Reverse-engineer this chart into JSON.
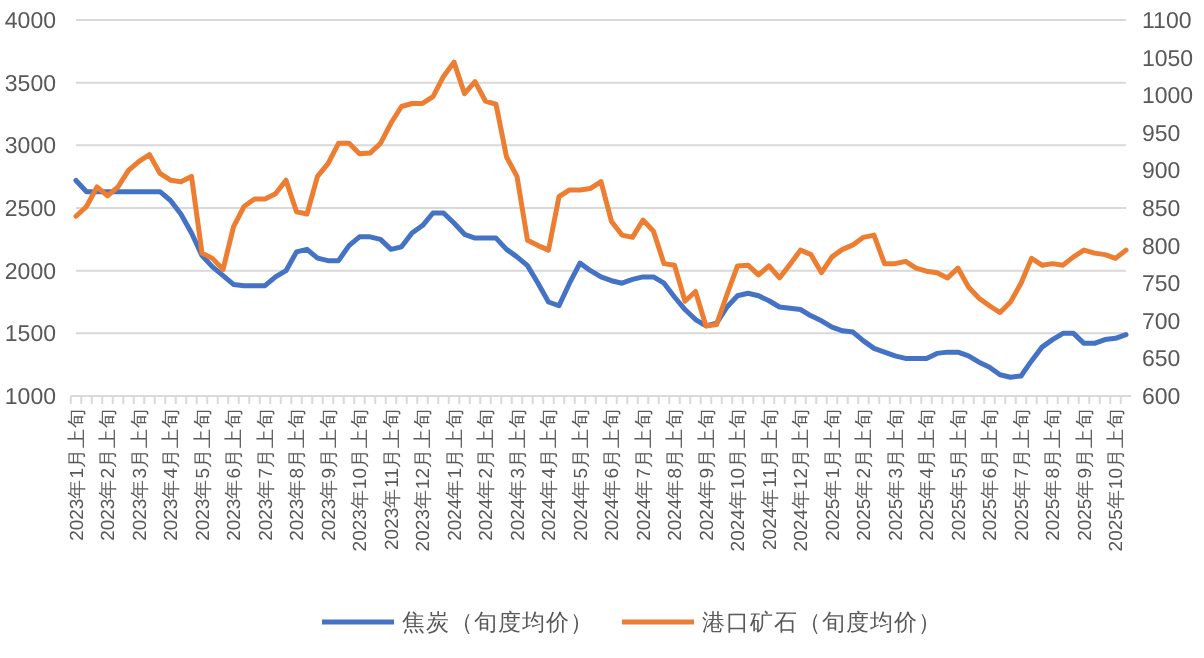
{
  "chart_data": {
    "type": "line",
    "categories": [
      "2023年1月上旬",
      null,
      null,
      "2023年2月上旬",
      null,
      null,
      "2023年3月上旬",
      null,
      null,
      "2023年4月上旬",
      null,
      null,
      "2023年5月上旬",
      null,
      null,
      "2023年6月上旬",
      null,
      null,
      "2023年7月上旬",
      null,
      null,
      "2023年8月上旬",
      null,
      null,
      "2023年9月上旬",
      null,
      null,
      "2023年10月上旬",
      null,
      null,
      "2023年11月上旬",
      null,
      null,
      "2023年12月上旬",
      null,
      null,
      "2024年1月上旬",
      null,
      null,
      "2024年2月上旬",
      null,
      null,
      "2024年3月上旬",
      null,
      null,
      "2024年4月上旬",
      null,
      null,
      "2024年5月上旬",
      null,
      null,
      "2024年6月上旬",
      null,
      null,
      "2024年7月上旬",
      null,
      null,
      "2024年8月上旬",
      null,
      null,
      "2024年9月上旬",
      null,
      null,
      "2024年10月上旬",
      null,
      null,
      "2024年11月上旬",
      null,
      null,
      "2024年12月上旬",
      null,
      null,
      "2025年1月上旬",
      null,
      null,
      "2025年2月上旬",
      null,
      null,
      "2025年3月上旬",
      null,
      null,
      "2025年4月上旬",
      null,
      null,
      "2025年5月上旬",
      null,
      null,
      "2025年6月上旬",
      null,
      null,
      "2025年7月上旬",
      null,
      null,
      "2025年8月上旬",
      null,
      null,
      "2025年9月上旬",
      null,
      null,
      "2025年10月上旬",
      null
    ],
    "series": [
      {
        "name": "焦炭（旬度均价）",
        "color": "#4472c4",
        "values": [
          2720,
          2630,
          2630,
          2630,
          2630,
          2630,
          2630,
          2630,
          2630,
          2560,
          2450,
          2300,
          2120,
          2030,
          1960,
          1890,
          1880,
          1880,
          1880,
          1950,
          2000,
          2150,
          2170,
          2100,
          2080,
          2080,
          2200,
          2270,
          2270,
          2250,
          2170,
          2190,
          2300,
          2360,
          2460,
          2460,
          2380,
          2290,
          2260,
          2260,
          2260,
          2170,
          2110,
          2040,
          1900,
          1750,
          1720,
          1900,
          2060,
          2000,
          1950,
          1920,
          1900,
          1930,
          1950,
          1950,
          1900,
          1790,
          1690,
          1610,
          1560,
          1580,
          1710,
          1800,
          1820,
          1800,
          1760,
          1710,
          1700,
          1690,
          1640,
          1600,
          1550,
          1520,
          1510,
          1440,
          1380,
          1350,
          1320,
          1300,
          1300,
          1300,
          1340,
          1350,
          1350,
          1320,
          1270,
          1230,
          1170,
          1150,
          1160,
          1280,
          1390,
          1450,
          1500,
          1500,
          1420,
          1420,
          1450,
          1460,
          1490
        ]
      },
      {
        "name": "港口矿石（旬度均价）",
        "color": "#ed7d31",
        "axis": "y2",
        "values": [
          839,
          852,
          878,
          866,
          878,
          900,
          912,
          921,
          896,
          887,
          885,
          892,
          790,
          783,
          768,
          825,
          852,
          862,
          862,
          869,
          887,
          845,
          842,
          892,
          909,
          936,
          936,
          922,
          923,
          936,
          963,
          985,
          989,
          989,
          998,
          1025,
          1044,
          1002,
          1018,
          992,
          988,
          918,
          892,
          807,
          800,
          794,
          865,
          874,
          874,
          876,
          885,
          832,
          814,
          811,
          834,
          819,
          776,
          774,
          726,
          739,
          693,
          695,
          735,
          773,
          774,
          761,
          773,
          757,
          775,
          794,
          788,
          764,
          785,
          795,
          801,
          811,
          814,
          776,
          776,
          779,
          770,
          766,
          764,
          757,
          770,
          745,
          730,
          720,
          711,
          725,
          750,
          783,
          774,
          776,
          774,
          785,
          794,
          790,
          788,
          783,
          794
        ]
      }
    ],
    "ylim": [
      1000,
      4000
    ],
    "yticks": [
      1000,
      1500,
      2000,
      2500,
      3000,
      3500,
      4000
    ],
    "y2lim": [
      600,
      1100
    ],
    "y2ticks": [
      600,
      650,
      700,
      750,
      800,
      850,
      900,
      950,
      1000,
      1050,
      1100
    ],
    "grid": "y",
    "legend": "bottom"
  }
}
